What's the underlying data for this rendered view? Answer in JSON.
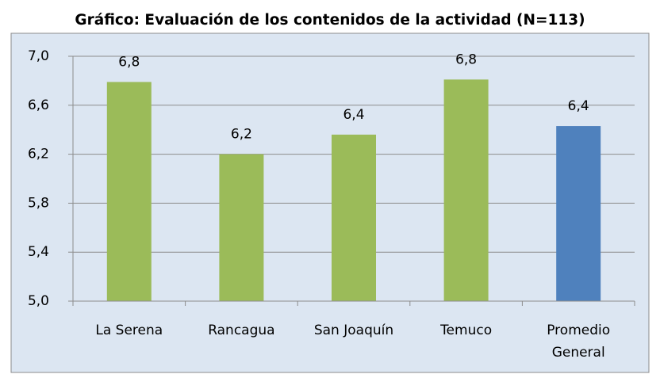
{
  "chart_data": {
    "type": "bar",
    "title": "Gráfico: Evaluación de los contenidos de la actividad (N=113)",
    "categories": [
      "La Serena",
      "Rancagua",
      "San Joaquín",
      "Temuco",
      "Promedio General"
    ],
    "values": [
      6.79,
      6.2,
      6.36,
      6.81,
      6.43
    ],
    "value_labels": [
      "6,8",
      "6,2",
      "6,4",
      "6,8",
      "6,4"
    ],
    "colors": [
      "#9bbb59",
      "#9bbb59",
      "#9bbb59",
      "#9bbb59",
      "#4f81bd"
    ],
    "ylim": [
      5.0,
      7.0
    ],
    "yticks": [
      {
        "value": 5.0,
        "label": "5,0"
      },
      {
        "value": 5.4,
        "label": "5,4"
      },
      {
        "value": 5.8,
        "label": "5,8"
      },
      {
        "value": 6.2,
        "label": "6,2"
      },
      {
        "value": 6.6,
        "label": "6,6"
      },
      {
        "value": 7.0,
        "label": "7,0"
      }
    ],
    "grid": true
  }
}
